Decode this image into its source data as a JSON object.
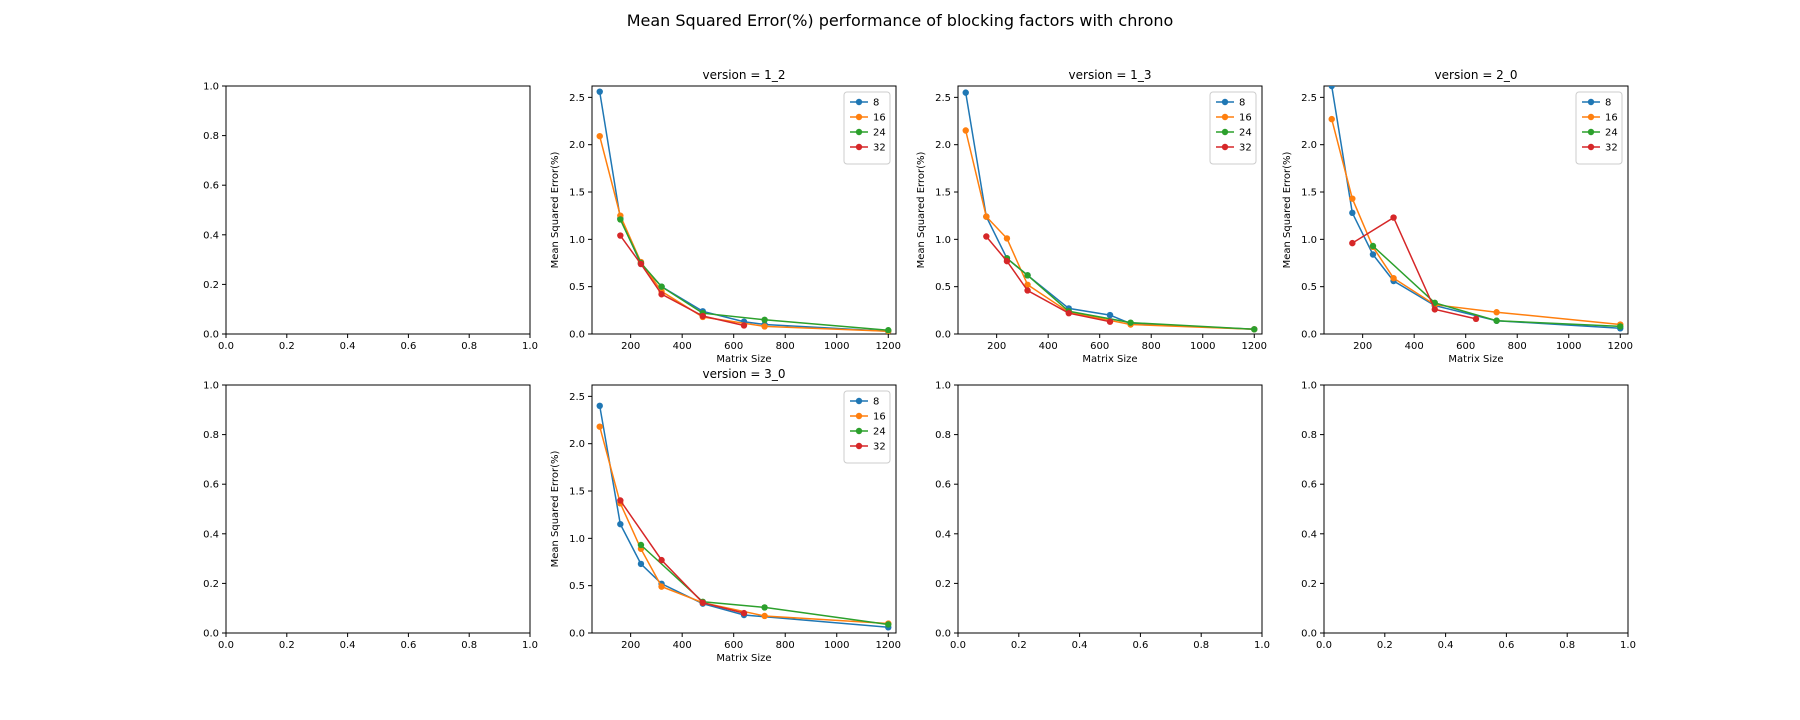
{
  "figure": {
    "title": "Mean Squared Error(%) performance of blocking factors with chrono"
  },
  "colors": {
    "8": "#1f77b4",
    "16": "#ff7f0e",
    "24": "#2ca02c",
    "32": "#d62728",
    "axes": "#000000",
    "background": "#ffffff"
  },
  "chart_data": [
    {
      "type": "empty",
      "ylim": [
        0,
        1
      ],
      "xlim": [
        0,
        1
      ],
      "xticks": [
        "0.0",
        "0.2",
        "0.4",
        "0.6",
        "0.8",
        "1.0"
      ],
      "yticks": [
        "0.0",
        "0.2",
        "0.4",
        "0.6",
        "0.8",
        "1.0"
      ]
    },
    {
      "type": "line",
      "title": "version = 1_2",
      "xlabel": "Matrix Size",
      "ylabel": "Mean Squared Error(%)",
      "xticks": [
        "200",
        "400",
        "600",
        "800",
        "1000",
        "1200"
      ],
      "yticks": [
        "0.0",
        "0.5",
        "1.0",
        "1.5",
        "2.0",
        "2.5"
      ],
      "legend_position": "top-right",
      "series": [
        {
          "name": "8",
          "x": [
            80,
            160,
            240,
            320,
            480,
            640,
            720,
            1200
          ],
          "y": [
            2.56,
            1.22,
            0.74,
            0.5,
            0.24,
            0.13,
            0.1,
            0.03
          ]
        },
        {
          "name": "16",
          "x": [
            80,
            160,
            240,
            320,
            480,
            720,
            1200
          ],
          "y": [
            2.09,
            1.25,
            0.76,
            0.45,
            0.18,
            0.08,
            0.03
          ]
        },
        {
          "name": "24",
          "x": [
            160,
            240,
            320,
            480,
            720,
            1200
          ],
          "y": [
            1.21,
            0.75,
            0.5,
            0.22,
            0.15,
            0.04
          ]
        },
        {
          "name": "32",
          "x": [
            160,
            240,
            320,
            480,
            640
          ],
          "y": [
            1.04,
            0.74,
            0.42,
            0.19,
            0.09
          ]
        }
      ]
    },
    {
      "type": "line",
      "title": "version = 1_3",
      "xlabel": "Matrix Size",
      "ylabel": "Mean Squared Error(%)",
      "xticks": [
        "200",
        "400",
        "600",
        "800",
        "1000",
        "1200"
      ],
      "yticks": [
        "0.0",
        "0.5",
        "1.0",
        "1.5",
        "2.0",
        "2.5"
      ],
      "legend_position": "top-right",
      "series": [
        {
          "name": "8",
          "x": [
            80,
            160,
            240,
            320,
            480,
            640,
            720,
            1200
          ],
          "y": [
            2.55,
            1.24,
            0.8,
            0.62,
            0.27,
            0.2,
            0.11,
            0.05
          ]
        },
        {
          "name": "16",
          "x": [
            80,
            160,
            240,
            320,
            480,
            720,
            1200
          ],
          "y": [
            2.15,
            1.24,
            1.01,
            0.52,
            0.23,
            0.1,
            0.05
          ]
        },
        {
          "name": "24",
          "x": [
            240,
            320,
            480,
            720,
            1200
          ],
          "y": [
            0.8,
            0.62,
            0.24,
            0.12,
            0.05
          ]
        },
        {
          "name": "32",
          "x": [
            160,
            240,
            320,
            480,
            640
          ],
          "y": [
            1.03,
            0.77,
            0.46,
            0.22,
            0.13
          ]
        }
      ]
    },
    {
      "type": "line",
      "title": "version = 2_0",
      "xlabel": "Matrix Size",
      "ylabel": "Mean Squared Error(%)",
      "xticks": [
        "200",
        "400",
        "600",
        "800",
        "1000",
        "1200"
      ],
      "yticks": [
        "0.0",
        "0.5",
        "1.0",
        "1.5",
        "2.0",
        "2.5"
      ],
      "legend_position": "top-right",
      "series": [
        {
          "name": "8",
          "x": [
            80,
            160,
            240,
            320,
            480,
            720,
            1200
          ],
          "y": [
            2.62,
            1.28,
            0.84,
            0.56,
            0.3,
            0.14,
            0.06
          ]
        },
        {
          "name": "16",
          "x": [
            80,
            160,
            240,
            320,
            480,
            720,
            1200
          ],
          "y": [
            2.27,
            1.43,
            0.92,
            0.59,
            0.31,
            0.23,
            0.1
          ]
        },
        {
          "name": "24",
          "x": [
            240,
            480,
            720,
            1200
          ],
          "y": [
            0.93,
            0.33,
            0.14,
            0.08
          ]
        },
        {
          "name": "32",
          "x": [
            160,
            320,
            480,
            640
          ],
          "y": [
            0.96,
            1.23,
            0.26,
            0.16
          ]
        }
      ]
    },
    {
      "type": "empty",
      "ylim": [
        0,
        1
      ],
      "xlim": [
        0,
        1
      ],
      "xticks": [
        "0.0",
        "0.2",
        "0.4",
        "0.6",
        "0.8",
        "1.0"
      ],
      "yticks": [
        "0.0",
        "0.2",
        "0.4",
        "0.6",
        "0.8",
        "1.0"
      ]
    },
    {
      "type": "line",
      "title": "version = 3_0",
      "xlabel": "Matrix Size",
      "ylabel": "Mean Squared Error(%)",
      "xticks": [
        "200",
        "400",
        "600",
        "800",
        "1000",
        "1200"
      ],
      "yticks": [
        "0.0",
        "0.5",
        "1.0",
        "1.5",
        "2.0",
        "2.5"
      ],
      "legend_position": "top-right",
      "series": [
        {
          "name": "8",
          "x": [
            80,
            160,
            240,
            320,
            480,
            640,
            1200
          ],
          "y": [
            2.4,
            1.15,
            0.73,
            0.52,
            0.31,
            0.19,
            0.06
          ]
        },
        {
          "name": "16",
          "x": [
            80,
            160,
            240,
            320,
            480,
            720,
            1200
          ],
          "y": [
            2.18,
            1.37,
            0.89,
            0.49,
            0.32,
            0.18,
            0.1
          ]
        },
        {
          "name": "24",
          "x": [
            240,
            480,
            720,
            1200
          ],
          "y": [
            0.93,
            0.33,
            0.27,
            0.09
          ]
        },
        {
          "name": "32",
          "x": [
            160,
            320,
            480,
            640
          ],
          "y": [
            1.4,
            0.77,
            0.32,
            0.21
          ]
        }
      ]
    },
    {
      "type": "empty",
      "ylim": [
        0,
        1
      ],
      "xlim": [
        0,
        1
      ],
      "xticks": [
        "0.0",
        "0.2",
        "0.4",
        "0.6",
        "0.8",
        "1.0"
      ],
      "yticks": [
        "0.0",
        "0.2",
        "0.4",
        "0.6",
        "0.8",
        "1.0"
      ]
    },
    {
      "type": "empty",
      "ylim": [
        0,
        1
      ],
      "xlim": [
        0,
        1
      ],
      "xticks": [
        "0.0",
        "0.2",
        "0.4",
        "0.6",
        "0.8",
        "1.0"
      ],
      "yticks": [
        "0.0",
        "0.2",
        "0.4",
        "0.6",
        "0.8",
        "1.0"
      ]
    }
  ]
}
